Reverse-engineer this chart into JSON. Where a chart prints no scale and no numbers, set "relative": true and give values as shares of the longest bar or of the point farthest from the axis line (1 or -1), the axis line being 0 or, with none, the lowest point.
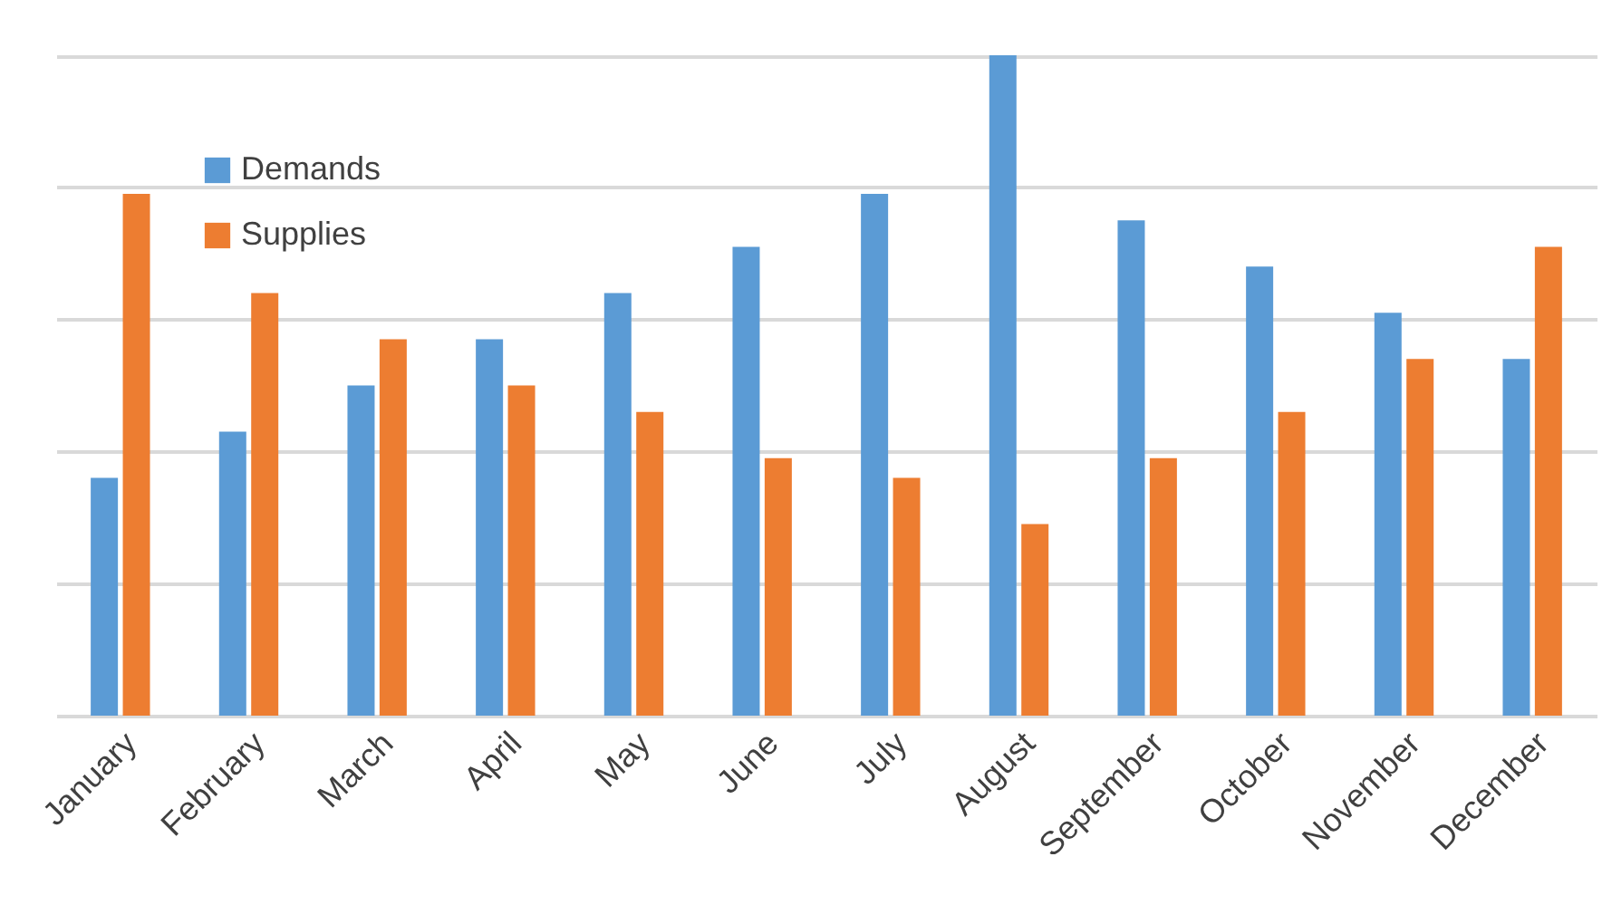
{
  "chart_data": {
    "type": "bar",
    "relative": true,
    "grid": true,
    "legend": "top left",
    "categories": [
      "January",
      "February",
      "March",
      "April",
      "May",
      "June",
      "July",
      "August",
      "September",
      "October",
      "November",
      "December"
    ],
    "series": [
      {
        "name": "Demands",
        "color": "#5b9bd5",
        "values": [
          0.36,
          0.43,
          0.5,
          0.57,
          0.64,
          0.71,
          0.79,
          1,
          0.75,
          0.68,
          0.61,
          0.54
        ]
      },
      {
        "name": "Supplies",
        "color": "#ed7d31",
        "values": [
          0.79,
          0.64,
          0.57,
          0.5,
          0.46,
          0.39,
          0.36,
          0.29,
          0.39,
          0.46,
          0.54,
          0.71
        ]
      }
    ]
  }
}
